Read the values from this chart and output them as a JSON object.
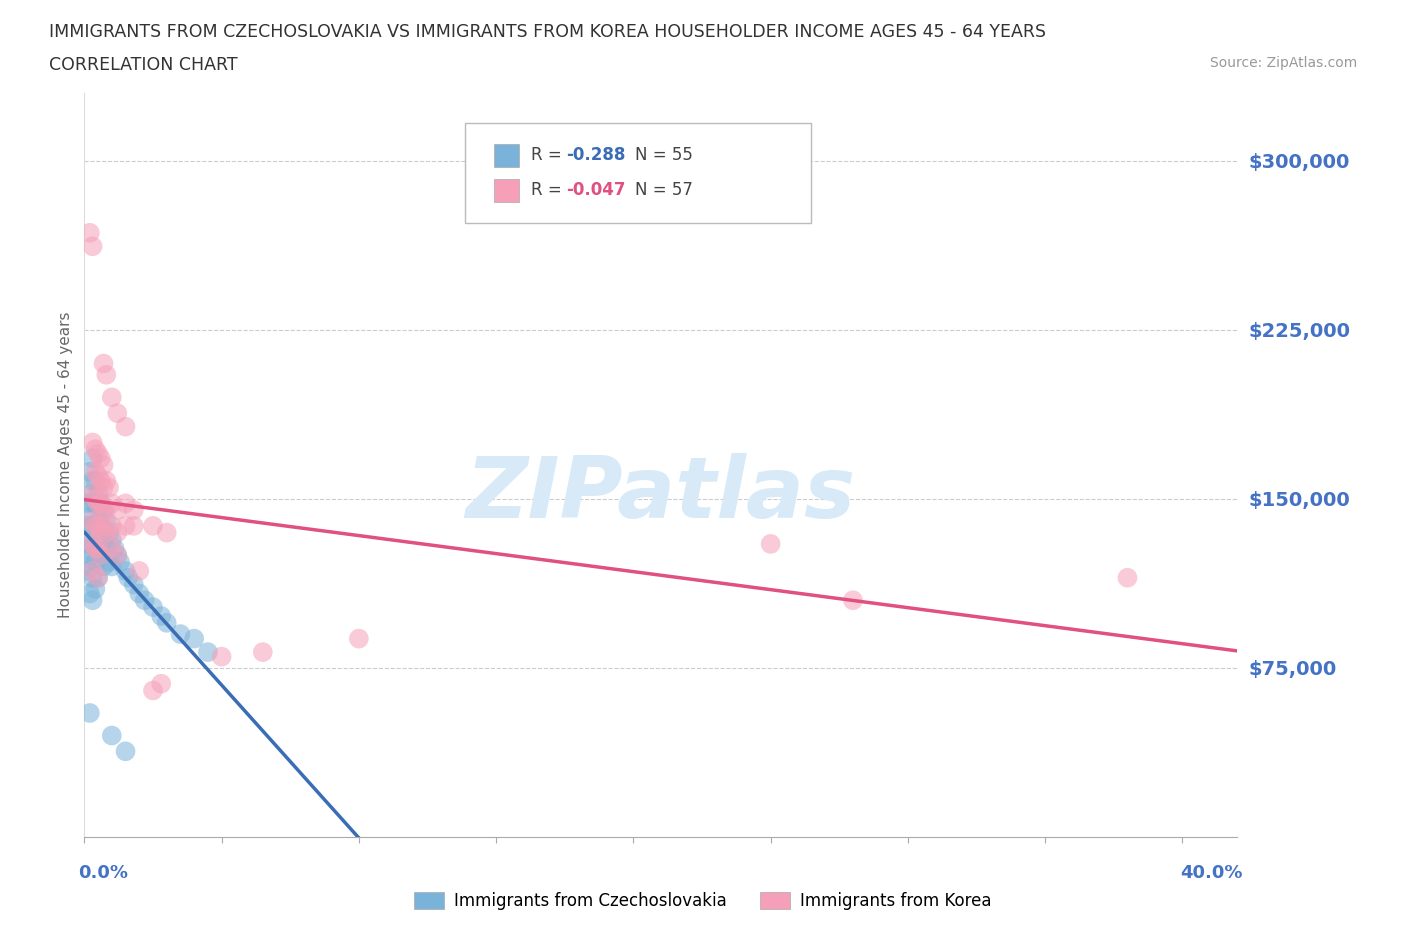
{
  "title_line1": "IMMIGRANTS FROM CZECHOSLOVAKIA VS IMMIGRANTS FROM KOREA HOUSEHOLDER INCOME AGES 45 - 64 YEARS",
  "title_line2": "CORRELATION CHART",
  "source_text": "Source: ZipAtlas.com",
  "ylabel": "Householder Income Ages 45 - 64 years",
  "x_lim": [
    0.0,
    0.42
  ],
  "y_lim": [
    0,
    330000
  ],
  "color_czech": "#7ab3d9",
  "color_korea": "#f5a0b8",
  "color_czech_line": "#3a6db5",
  "color_korea_line": "#e05080",
  "watermark_color": "#d8eaf7",
  "grid_color": "#cccccc",
  "ytick_color": "#4472c4",
  "yticks": [
    75000,
    150000,
    225000,
    300000
  ],
  "ytick_labels": [
    "$75,000",
    "$150,000",
    "$225,000",
    "$300,000"
  ],
  "czech_points": [
    [
      0.001,
      148000
    ],
    [
      0.001,
      138000
    ],
    [
      0.001,
      128000
    ],
    [
      0.001,
      118000
    ],
    [
      0.002,
      162000
    ],
    [
      0.002,
      152000
    ],
    [
      0.002,
      142000
    ],
    [
      0.002,
      130000
    ],
    [
      0.002,
      120000
    ],
    [
      0.002,
      108000
    ],
    [
      0.003,
      168000
    ],
    [
      0.003,
      158000
    ],
    [
      0.003,
      148000
    ],
    [
      0.003,
      138000
    ],
    [
      0.003,
      125000
    ],
    [
      0.003,
      115000
    ],
    [
      0.003,
      105000
    ],
    [
      0.004,
      158000
    ],
    [
      0.004,
      148000
    ],
    [
      0.004,
      135000
    ],
    [
      0.004,
      122000
    ],
    [
      0.004,
      110000
    ],
    [
      0.005,
      152000
    ],
    [
      0.005,
      140000
    ],
    [
      0.005,
      128000
    ],
    [
      0.005,
      115000
    ],
    [
      0.006,
      148000
    ],
    [
      0.006,
      138000
    ],
    [
      0.006,
      125000
    ],
    [
      0.007,
      145000
    ],
    [
      0.007,
      132000
    ],
    [
      0.007,
      120000
    ],
    [
      0.008,
      140000
    ],
    [
      0.008,
      128000
    ],
    [
      0.009,
      135000
    ],
    [
      0.009,
      122000
    ],
    [
      0.01,
      132000
    ],
    [
      0.01,
      120000
    ],
    [
      0.011,
      128000
    ],
    [
      0.012,
      125000
    ],
    [
      0.013,
      122000
    ],
    [
      0.015,
      118000
    ],
    [
      0.016,
      115000
    ],
    [
      0.018,
      112000
    ],
    [
      0.02,
      108000
    ],
    [
      0.022,
      105000
    ],
    [
      0.025,
      102000
    ],
    [
      0.028,
      98000
    ],
    [
      0.03,
      95000
    ],
    [
      0.035,
      90000
    ],
    [
      0.04,
      88000
    ],
    [
      0.045,
      82000
    ],
    [
      0.002,
      55000
    ],
    [
      0.01,
      45000
    ],
    [
      0.015,
      38000
    ]
  ],
  "korea_points": [
    [
      0.002,
      268000
    ],
    [
      0.003,
      262000
    ],
    [
      0.007,
      210000
    ],
    [
      0.008,
      205000
    ],
    [
      0.01,
      195000
    ],
    [
      0.012,
      188000
    ],
    [
      0.015,
      182000
    ],
    [
      0.003,
      175000
    ],
    [
      0.004,
      172000
    ],
    [
      0.005,
      170000
    ],
    [
      0.006,
      168000
    ],
    [
      0.007,
      165000
    ],
    [
      0.004,
      162000
    ],
    [
      0.005,
      160000
    ],
    [
      0.006,
      158000
    ],
    [
      0.007,
      155000
    ],
    [
      0.008,
      158000
    ],
    [
      0.009,
      155000
    ],
    [
      0.003,
      152000
    ],
    [
      0.004,
      150000
    ],
    [
      0.005,
      148000
    ],
    [
      0.006,
      148000
    ],
    [
      0.007,
      145000
    ],
    [
      0.008,
      145000
    ],
    [
      0.01,
      148000
    ],
    [
      0.012,
      145000
    ],
    [
      0.015,
      148000
    ],
    [
      0.018,
      145000
    ],
    [
      0.003,
      140000
    ],
    [
      0.004,
      138000
    ],
    [
      0.005,
      138000
    ],
    [
      0.006,
      135000
    ],
    [
      0.007,
      138000
    ],
    [
      0.008,
      135000
    ],
    [
      0.01,
      138000
    ],
    [
      0.012,
      135000
    ],
    [
      0.015,
      138000
    ],
    [
      0.018,
      138000
    ],
    [
      0.025,
      138000
    ],
    [
      0.03,
      135000
    ],
    [
      0.003,
      130000
    ],
    [
      0.004,
      128000
    ],
    [
      0.005,
      128000
    ],
    [
      0.006,
      125000
    ],
    [
      0.01,
      128000
    ],
    [
      0.012,
      125000
    ],
    [
      0.003,
      118000
    ],
    [
      0.005,
      115000
    ],
    [
      0.02,
      118000
    ],
    [
      0.25,
      130000
    ],
    [
      0.28,
      105000
    ],
    [
      0.38,
      115000
    ],
    [
      0.025,
      65000
    ],
    [
      0.028,
      68000
    ],
    [
      0.05,
      80000
    ],
    [
      0.065,
      82000
    ],
    [
      0.1,
      88000
    ]
  ]
}
